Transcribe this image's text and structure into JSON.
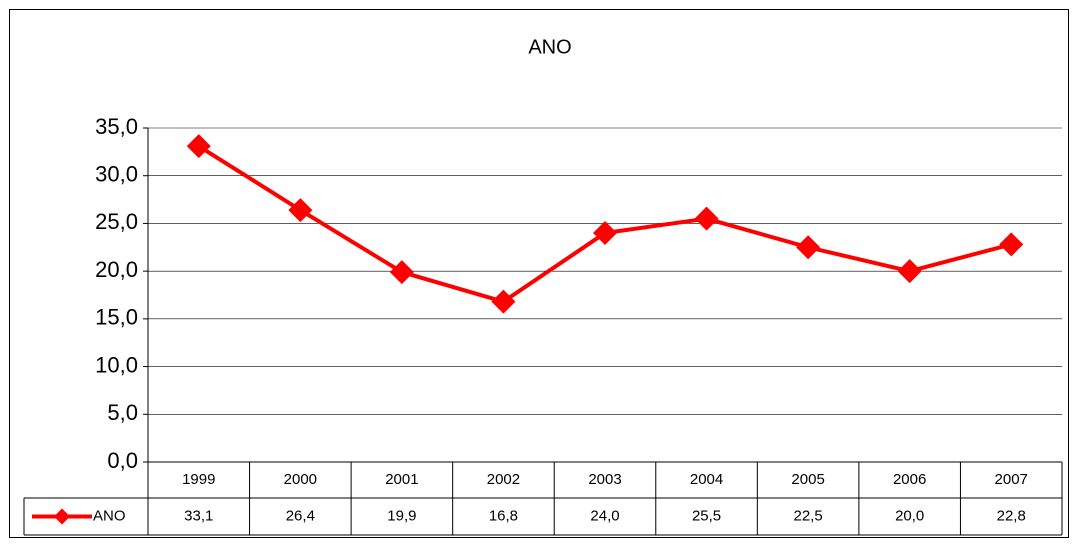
{
  "chart_data": {
    "type": "line",
    "title": "ANO",
    "categories": [
      "1999",
      "2000",
      "2001",
      "2002",
      "2003",
      "2004",
      "2005",
      "2006",
      "2007"
    ],
    "series": [
      {
        "name": "ANO",
        "color": "#ff0000",
        "values": [
          33.1,
          26.4,
          19.9,
          16.8,
          24.0,
          25.5,
          22.5,
          20.0,
          22.8
        ],
        "value_labels": [
          "33,1",
          "26,4",
          "19,9",
          "16,8",
          "24,0",
          "25,5",
          "22,5",
          "20,0",
          "22,8"
        ]
      }
    ],
    "ylim": [
      0,
      35
    ],
    "yticks": [
      {
        "value": 0,
        "label": "0,0"
      },
      {
        "value": 5,
        "label": "5,0"
      },
      {
        "value": 10,
        "label": "10,0"
      },
      {
        "value": 15,
        "label": "15,0"
      },
      {
        "value": 20,
        "label": "20,0"
      },
      {
        "value": 25,
        "label": "25,0"
      },
      {
        "value": 30,
        "label": "30,0"
      },
      {
        "value": 35,
        "label": "35,0"
      }
    ],
    "grid": true
  }
}
